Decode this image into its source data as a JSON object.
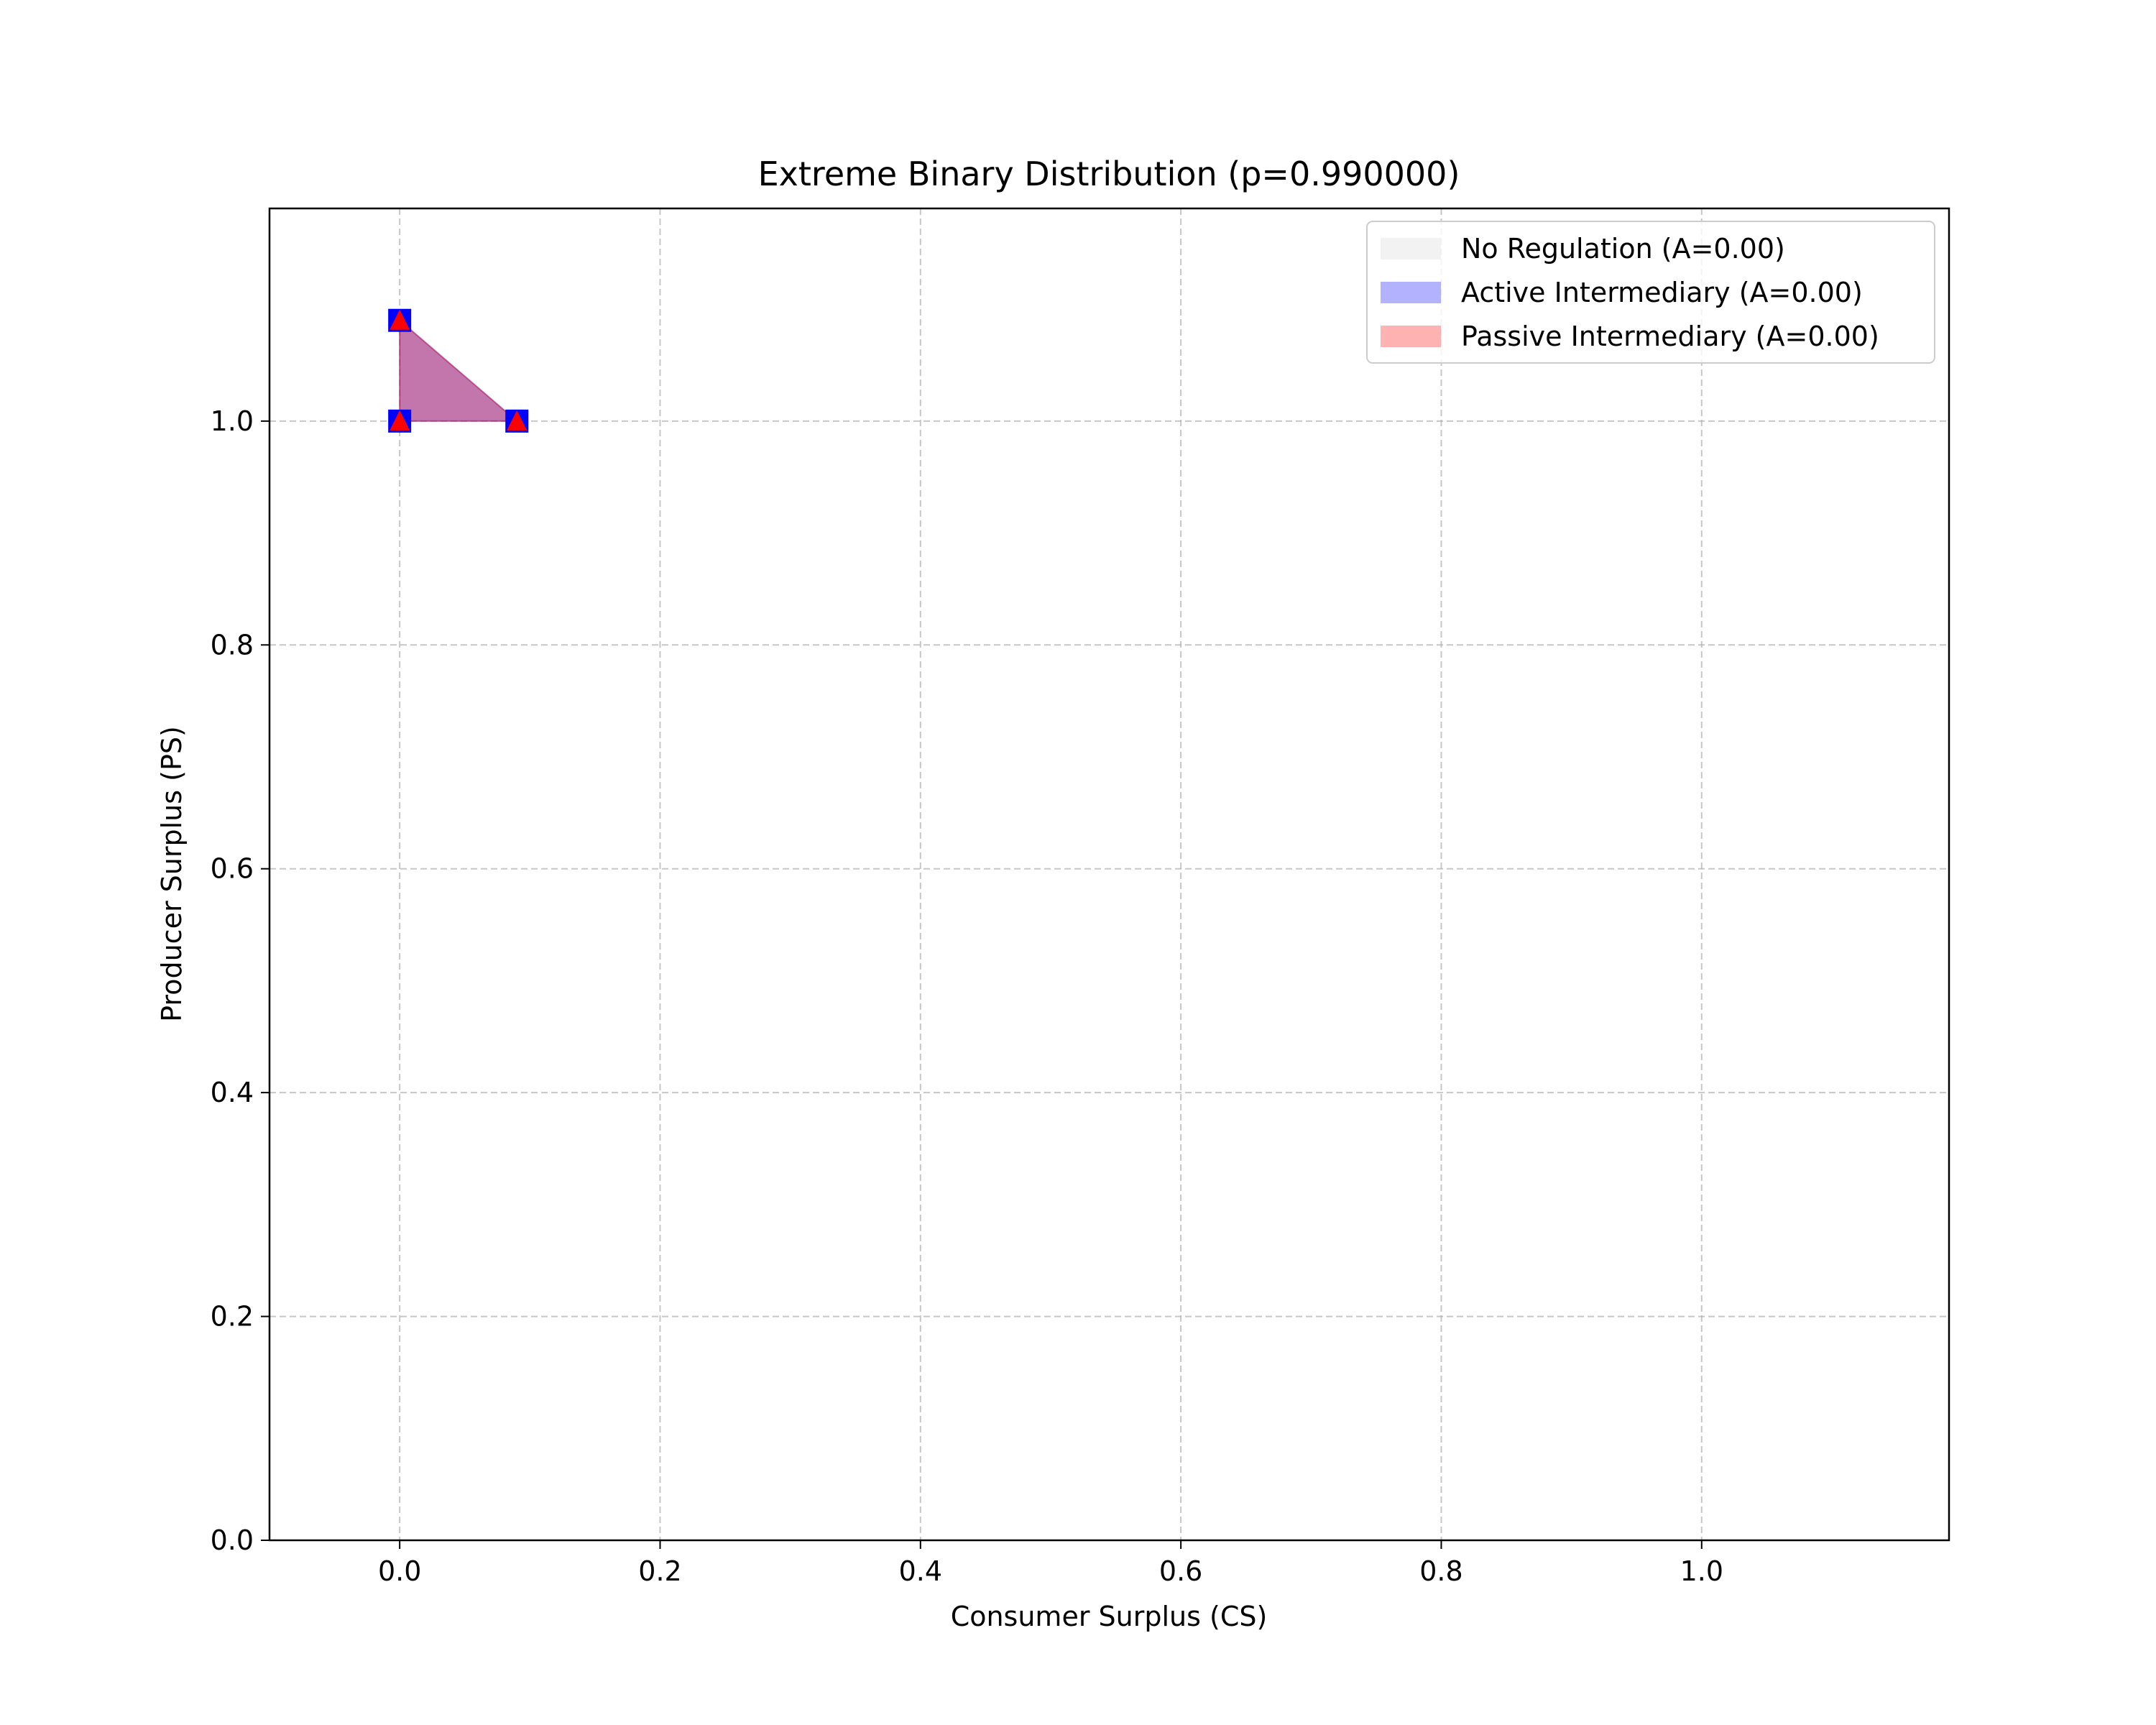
{
  "chart_data": {
    "type": "area",
    "title": "Extreme Binary Distribution (p=0.990000)",
    "xlabel": "Consumer Surplus (CS)",
    "ylabel": "Producer Surplus (PS)",
    "xlim": [
      -0.1,
      1.19
    ],
    "ylim": [
      0.0,
      1.19
    ],
    "xticks": [
      0.0,
      0.2,
      0.4,
      0.6,
      0.8,
      1.0
    ],
    "yticks": [
      0.0,
      0.2,
      0.4,
      0.6,
      0.8,
      1.0
    ],
    "xtick_labels": [
      "0.0",
      "0.2",
      "0.4",
      "0.6",
      "0.8",
      "1.0"
    ],
    "ytick_labels": [
      "0.0",
      "0.2",
      "0.4",
      "0.6",
      "0.8",
      "1.0"
    ],
    "grid": true,
    "legend_position": "top-right",
    "series": [
      {
        "name": "No Regulation (A=0.00)",
        "color": "#d3d3d3",
        "vertices": [
          [
            0.0,
            1.0
          ],
          [
            0.09,
            1.0
          ],
          [
            0.0,
            1.09
          ]
        ],
        "marker": "none"
      },
      {
        "name": "Active Intermediary (A=0.00)",
        "color": "#0000ff",
        "vertices": [
          [
            0.0,
            1.0
          ],
          [
            0.09,
            1.0
          ],
          [
            0.0,
            1.09
          ]
        ],
        "marker": "square"
      },
      {
        "name": "Passive Intermediary (A=0.00)",
        "color": "#ff0000",
        "vertices": [
          [
            0.0,
            1.0
          ],
          [
            0.09,
            1.0
          ],
          [
            0.0,
            1.09
          ]
        ],
        "marker": "triangle"
      }
    ]
  }
}
